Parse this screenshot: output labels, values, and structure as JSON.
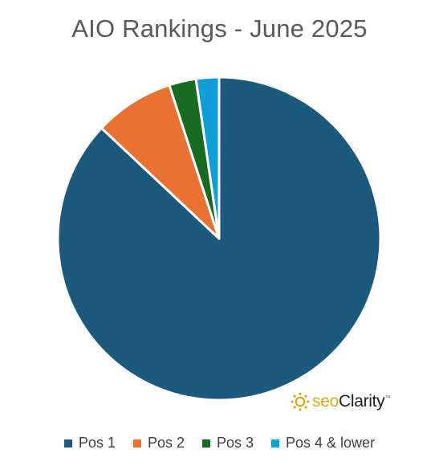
{
  "chart_data": {
    "type": "pie",
    "title": "AIO Rankings - June 2025",
    "categories": [
      "Pos 1",
      "Pos 2",
      "Pos 3",
      "Pos 4 & lower"
    ],
    "values": [
      87,
      8,
      2.7,
      2.3
    ],
    "unit": "%",
    "colors": [
      "#1b5a7d",
      "#e97132",
      "#196b24",
      "#0f9ed5"
    ],
    "start_angle_deg": 0,
    "direction": "clockwise",
    "legend_position": "bottom"
  },
  "brand": {
    "seo": "seo",
    "clarity": "Clarity",
    "tm": "™",
    "icon": "sun-logo-icon"
  }
}
